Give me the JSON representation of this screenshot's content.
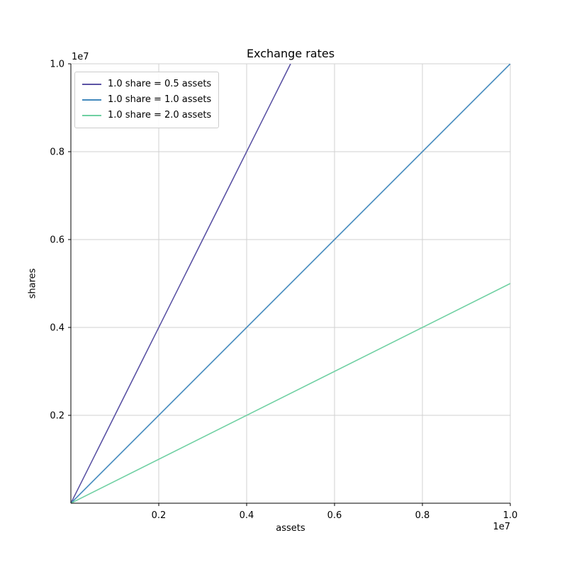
{
  "chart_data": {
    "type": "line",
    "title": "Exchange rates",
    "xlabel": "assets",
    "ylabel": "shares",
    "x_offset_text": "1e7",
    "y_offset_text": "1e7",
    "xlim": [
      0,
      10000000
    ],
    "ylim": [
      0,
      10000000
    ],
    "xticks": [
      2000000,
      4000000,
      6000000,
      8000000,
      10000000
    ],
    "xtick_labels": [
      "0.2",
      "0.4",
      "0.6",
      "0.8",
      "1.0"
    ],
    "yticks": [
      2000000,
      4000000,
      6000000,
      8000000,
      10000000
    ],
    "ytick_labels": [
      "0.2",
      "0.4",
      "0.6",
      "0.8",
      "1.0"
    ],
    "grid": true,
    "legend_position": "upper left",
    "series": [
      {
        "name": "1.0 share = 0.5 assets",
        "color": "#5b53a4",
        "x": [
          0,
          5000000
        ],
        "y": [
          0,
          10000000
        ]
      },
      {
        "name": "1.0 share = 1.0 assets",
        "color": "#4289bd",
        "x": [
          0,
          10000000
        ],
        "y": [
          0,
          10000000
        ]
      },
      {
        "name": "1.0 share = 2.0 assets",
        "color": "#6fd0a2",
        "x": [
          0,
          10000000
        ],
        "y": [
          0,
          5000000
        ]
      }
    ],
    "colors": {
      "grid": "#d0d0d0",
      "spine": "#000000",
      "tick_text": "#000000",
      "legend_border": "#cccccc",
      "background": "#ffffff"
    }
  }
}
